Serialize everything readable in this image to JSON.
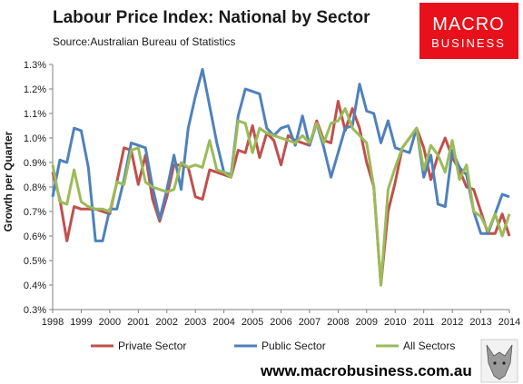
{
  "header": {
    "title": "Labour Price Index: National by Sector",
    "source": "Source:Australian Bureau of Statistics"
  },
  "logo": {
    "line1": "MACRO",
    "line2": "BUSINESS"
  },
  "footer": {
    "url": "www.macrobusiness.com.au"
  },
  "chart_data": {
    "type": "line",
    "title": "Labour Price Index: National by Sector",
    "ylabel": "Growth per Quarter",
    "xlabel": "",
    "xlim": [
      1998,
      2014
    ],
    "ylim": [
      0.3,
      1.3
    ],
    "grid": false,
    "legend_position": "bottom",
    "x_tick_labels": [
      "1998",
      "1999",
      "2000",
      "2001",
      "2002",
      "2003",
      "2004",
      "2005",
      "2006",
      "2007",
      "2008",
      "2009",
      "2010",
      "2011",
      "2012",
      "2013",
      "2014"
    ],
    "y_tick_labels": [
      "0.3%",
      "0.4%",
      "0.5%",
      "0.6%",
      "0.7%",
      "0.8%",
      "0.9%",
      "1.0%",
      "1.1%",
      "1.2%",
      "1.3%"
    ],
    "y_ticks": [
      0.3,
      0.4,
      0.5,
      0.6,
      0.7,
      0.8,
      0.9,
      1.0,
      1.1,
      1.2,
      1.3
    ],
    "series": [
      {
        "name": "Private Sector",
        "color": "#c0504d",
        "x": [
          1998.0,
          1998.25,
          1998.5,
          1998.75,
          1999.0,
          1999.25,
          1999.5,
          1999.75,
          2000.0,
          2000.25,
          2000.5,
          2000.75,
          2001.0,
          2001.25,
          2001.5,
          2001.75,
          2002.0,
          2002.25,
          2002.5,
          2002.75,
          2003.0,
          2003.25,
          2003.5,
          2003.75,
          2004.0,
          2004.25,
          2004.5,
          2004.75,
          2005.0,
          2005.25,
          2005.5,
          2005.75,
          2006.0,
          2006.25,
          2006.5,
          2006.75,
          2007.0,
          2007.25,
          2007.5,
          2007.75,
          2008.0,
          2008.25,
          2008.5,
          2008.75,
          2009.0,
          2009.25,
          2009.5,
          2009.75,
          2010.0,
          2010.25,
          2010.5,
          2010.75,
          2011.0,
          2011.25,
          2011.5,
          2011.75,
          2012.0,
          2012.25,
          2012.5,
          2012.75,
          2013.0,
          2013.25,
          2013.5,
          2013.75,
          2014.0
        ],
        "y": [
          0.86,
          0.75,
          0.58,
          0.72,
          0.71,
          0.71,
          0.71,
          0.7,
          0.69,
          0.82,
          0.96,
          0.95,
          0.81,
          0.93,
          0.75,
          0.66,
          0.76,
          0.89,
          0.89,
          0.88,
          0.76,
          0.75,
          0.87,
          0.86,
          0.85,
          0.84,
          0.95,
          0.94,
          1.05,
          0.92,
          1.02,
          0.99,
          0.89,
          1.01,
          0.99,
          0.98,
          0.97,
          1.07,
          0.99,
          0.98,
          1.15,
          1.03,
          1.12,
          1.04,
          0.9,
          0.8,
          0.4,
          0.7,
          0.82,
          0.96,
          1.0,
          1.04,
          0.96,
          0.83,
          0.93,
          1.0,
          0.92,
          0.87,
          0.8,
          0.79,
          0.7,
          0.61,
          0.61,
          0.69,
          0.6
        ]
      },
      {
        "name": "Public Sector",
        "color": "#4f81bd",
        "x": [
          1998.0,
          1998.25,
          1998.5,
          1998.75,
          1999.0,
          1999.25,
          1999.5,
          1999.75,
          2000.0,
          2000.25,
          2000.5,
          2000.75,
          2001.0,
          2001.25,
          2001.5,
          2001.75,
          2002.0,
          2002.25,
          2002.5,
          2002.75,
          2003.0,
          2003.25,
          2003.5,
          2003.75,
          2004.0,
          2004.25,
          2004.5,
          2004.75,
          2005.0,
          2005.25,
          2005.5,
          2005.75,
          2006.0,
          2006.25,
          2006.5,
          2006.75,
          2007.0,
          2007.25,
          2007.5,
          2007.75,
          2008.0,
          2008.25,
          2008.5,
          2008.75,
          2009.0,
          2009.25,
          2009.5,
          2009.75,
          2010.0,
          2010.25,
          2010.5,
          2010.75,
          2011.0,
          2011.25,
          2011.5,
          2011.75,
          2012.0,
          2012.25,
          2012.5,
          2012.75,
          2013.0,
          2013.25,
          2013.5,
          2013.75,
          2014.0
        ],
        "y": [
          0.76,
          0.91,
          0.9,
          1.04,
          1.03,
          0.88,
          0.58,
          0.58,
          0.71,
          0.71,
          0.83,
          0.98,
          0.97,
          0.96,
          0.8,
          0.67,
          0.79,
          0.93,
          0.79,
          1.04,
          1.17,
          1.28,
          1.13,
          0.98,
          0.86,
          0.85,
          1.09,
          1.2,
          1.19,
          1.18,
          1.04,
          1.01,
          1.04,
          1.05,
          0.97,
          1.09,
          0.97,
          1.06,
          0.96,
          0.84,
          0.94,
          1.04,
          1.05,
          1.22,
          1.11,
          1.1,
          0.98,
          1.07,
          0.96,
          0.95,
          0.94,
          1.04,
          0.84,
          0.93,
          0.73,
          0.72,
          0.95,
          0.88,
          0.85,
          0.7,
          0.61,
          0.61,
          0.69,
          0.77,
          0.76
        ]
      },
      {
        "name": "All Sectors",
        "color": "#9bbb59",
        "x": [
          1998.0,
          1998.25,
          1998.5,
          1998.75,
          1999.0,
          1999.25,
          1999.5,
          1999.75,
          2000.0,
          2000.25,
          2000.5,
          2000.75,
          2001.0,
          2001.25,
          2001.5,
          2001.75,
          2002.0,
          2002.25,
          2002.5,
          2002.75,
          2003.0,
          2003.25,
          2003.5,
          2003.75,
          2004.0,
          2004.25,
          2004.5,
          2004.75,
          2005.0,
          2005.25,
          2005.5,
          2005.75,
          2006.0,
          2006.25,
          2006.5,
          2006.75,
          2007.0,
          2007.25,
          2007.5,
          2007.75,
          2008.0,
          2008.25,
          2008.5,
          2008.75,
          2009.0,
          2009.25,
          2009.5,
          2009.75,
          2010.0,
          2010.25,
          2010.5,
          2010.75,
          2011.0,
          2011.25,
          2011.5,
          2011.75,
          2012.0,
          2012.25,
          2012.5,
          2012.75,
          2013.0,
          2013.25,
          2013.5,
          2013.75,
          2014.0
        ],
        "y": [
          0.89,
          0.74,
          0.73,
          0.87,
          0.74,
          0.72,
          0.71,
          0.71,
          0.7,
          0.82,
          0.81,
          0.95,
          0.96,
          0.82,
          0.8,
          0.79,
          0.78,
          0.79,
          0.9,
          0.88,
          0.89,
          0.88,
          0.99,
          0.87,
          0.86,
          0.84,
          1.07,
          1.06,
          0.94,
          1.04,
          1.02,
          1.01,
          1.0,
          0.99,
          0.98,
          1.01,
          0.98,
          1.06,
          0.98,
          1.06,
          1.07,
          1.12,
          1.04,
          1.01,
          0.98,
          0.8,
          0.4,
          0.79,
          0.88,
          0.96,
          1.0,
          1.04,
          0.87,
          0.97,
          0.93,
          0.86,
          0.99,
          0.83,
          0.89,
          0.7,
          0.68,
          0.62,
          0.69,
          0.6,
          0.69
        ]
      }
    ]
  }
}
